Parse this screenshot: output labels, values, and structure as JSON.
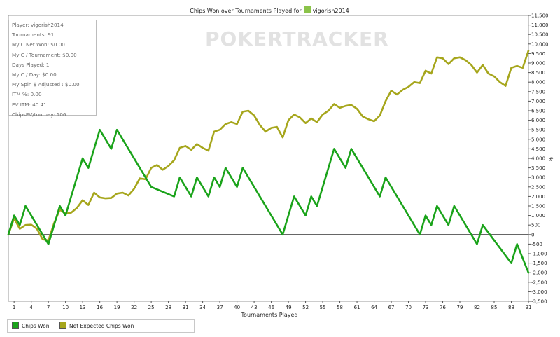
{
  "title_prefix": "Chips Won over Tournaments Played for",
  "player_name": "vigorish2014",
  "watermark": "POKERTRACKER",
  "stats": [
    "Player: vigorish2014",
    "Tournaments: 91",
    "My C Net Won: $0.00",
    "My C / Tournament: $0.00",
    "Days Played: 1",
    "My C / Day: $0.00",
    "My Spin $ Adjusted : $0.00",
    "ITM %: 0.00",
    "EV ITM: 40.41",
    "ChipsEV/tourney: 106"
  ],
  "y_axis_unit": "#",
  "legend": [
    "Chips Won",
    "Net Expected Chips Won"
  ],
  "colors": {
    "chips_won": "#1aa31a",
    "net_expected": "#a6a61c"
  },
  "chart_data": {
    "type": "line",
    "title": "Chips Won over Tournaments Played for vigorish2014",
    "xlabel": "Tournaments Played",
    "ylabel": "#",
    "xlim": [
      0,
      91
    ],
    "ylim": [
      -3500,
      11500
    ],
    "x_ticks": [
      1,
      4,
      7,
      10,
      13,
      16,
      19,
      22,
      25,
      28,
      31,
      34,
      37,
      40,
      43,
      46,
      49,
      52,
      55,
      58,
      61,
      64,
      67,
      70,
      73,
      76,
      79,
      82,
      85,
      88,
      91
    ],
    "y_ticks": [
      -3500,
      -3000,
      -2500,
      -2000,
      -1500,
      -1000,
      -500,
      0,
      500,
      1000,
      1500,
      2000,
      2500,
      3000,
      3500,
      4000,
      4500,
      5000,
      5500,
      6000,
      6500,
      7000,
      7500,
      8000,
      8500,
      9000,
      9500,
      10000,
      10500,
      11000,
      11500
    ],
    "y_tick_labels": [
      "-3,500",
      "-3,000",
      "-2,500",
      "-2,000",
      "-1,500",
      "-1,000",
      "-500",
      "0",
      "500",
      "1,000",
      "1,500",
      "2,000",
      "2,500",
      "3,000",
      "3,500",
      "4,000",
      "4,500",
      "5,000",
      "5,500",
      "6,000",
      "6,500",
      "7,000",
      "7,500",
      "8,000",
      "8,500",
      "9,000",
      "9,500",
      "10,000",
      "10,500",
      "11,000",
      "11,500"
    ],
    "grid": false,
    "legend_position": "bottom-left",
    "series": [
      {
        "name": "Chips Won",
        "x": [
          0,
          1,
          2,
          3,
          6,
          7,
          9,
          10,
          13,
          14,
          16,
          18,
          19,
          25,
          29,
          30,
          32,
          33,
          35,
          36,
          37,
          38,
          40,
          41,
          48,
          50,
          52,
          53,
          54,
          57,
          59,
          60,
          65,
          66,
          72,
          73,
          74,
          75,
          77,
          78,
          82,
          83,
          88,
          89,
          91
        ],
        "y": [
          0,
          1000,
          500,
          1500,
          0,
          -500,
          1500,
          1000,
          4000,
          3500,
          5500,
          4500,
          5500,
          2500,
          2000,
          3000,
          2000,
          3000,
          2000,
          3000,
          2500,
          3500,
          2500,
          3500,
          0,
          2000,
          1000,
          2000,
          1500,
          4500,
          3500,
          4500,
          2000,
          3000,
          0,
          1000,
          500,
          1500,
          500,
          1500,
          -500,
          500,
          -1500,
          -500,
          -2000
        ]
      },
      {
        "name": "Net Expected Chips Won",
        "x": [
          0,
          1,
          2,
          3,
          4,
          5,
          6,
          7,
          8,
          9,
          10,
          11,
          12,
          13,
          14,
          15,
          16,
          17,
          18,
          19,
          20,
          21,
          22,
          23,
          24,
          25,
          26,
          27,
          28,
          29,
          30,
          31,
          32,
          33,
          34,
          35,
          36,
          37,
          38,
          39,
          40,
          41,
          42,
          43,
          44,
          45,
          46,
          47,
          48,
          49,
          50,
          51,
          52,
          53,
          54,
          55,
          56,
          57,
          58,
          59,
          60,
          61,
          62,
          63,
          64,
          65,
          66,
          67,
          68,
          69,
          70,
          71,
          72,
          73,
          74,
          75,
          76,
          77,
          78,
          79,
          80,
          81,
          82,
          83,
          84,
          85,
          86,
          87,
          88,
          89,
          90,
          91
        ],
        "y": [
          0,
          850,
          300,
          500,
          520,
          300,
          -250,
          -300,
          600,
          1300,
          1100,
          1150,
          1400,
          1800,
          1550,
          2200,
          1950,
          1900,
          1920,
          2150,
          2200,
          2050,
          2400,
          2950,
          2900,
          3500,
          3650,
          3400,
          3600,
          3900,
          4550,
          4650,
          4450,
          4750,
          4550,
          4400,
          5400,
          5500,
          5800,
          5900,
          5800,
          6450,
          6500,
          6250,
          5750,
          5400,
          5600,
          5650,
          5100,
          6000,
          6300,
          6150,
          5850,
          6100,
          5900,
          6300,
          6500,
          6850,
          6650,
          6750,
          6800,
          6600,
          6200,
          6050,
          5950,
          6250,
          7000,
          7550,
          7350,
          7600,
          7750,
          8000,
          7950,
          8600,
          8450,
          9300,
          9250,
          8950,
          9250,
          9300,
          9150,
          8900,
          8500,
          8900,
          8450,
          8300,
          8000,
          7800,
          8750,
          8850,
          8750,
          9650
        ]
      }
    ]
  }
}
